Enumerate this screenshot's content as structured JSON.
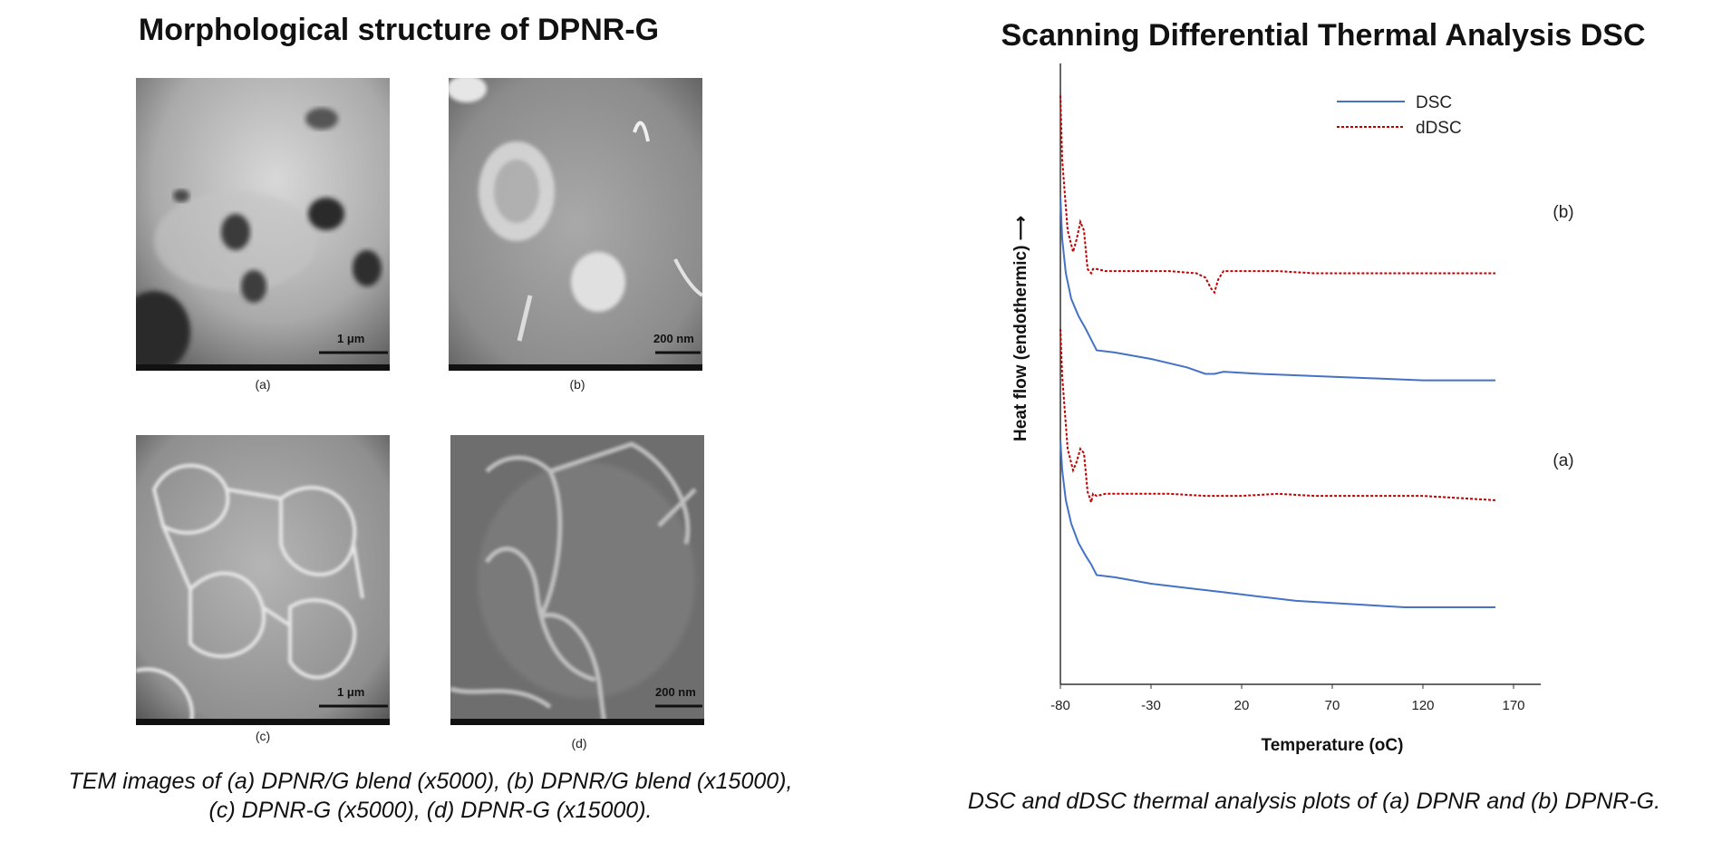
{
  "left": {
    "title": "Morphological structure of DPNR-G",
    "panels": [
      {
        "label": "(a)",
        "scale": "1 μm"
      },
      {
        "label": "(b)",
        "scale": "200 nm"
      },
      {
        "label": "(c)",
        "scale": "1 μm"
      },
      {
        "label": "(d)",
        "scale": "200 nm"
      }
    ],
    "caption_line1": "TEM images of (a) DPNR/G blend (x5000), (b) DPNR/G blend (x15000),",
    "caption_line2": "(c) DPNR-G (x5000), (d) DPNR-G (x15000)."
  },
  "right": {
    "title": "Scanning Differential Thermal Analysis DSC",
    "caption": "DSC and dDSC thermal analysis plots of (a) DPNR and (b) DPNR-G."
  },
  "chart_data": {
    "type": "line",
    "title": "Scanning Differential Thermal Analysis DSC",
    "xlabel": "Temperature (oC)",
    "ylabel": "Heat flow (endothermic) ⟶",
    "xlim": [
      -80,
      180
    ],
    "xticks": [
      "-80",
      "-30",
      "20",
      "70",
      "120",
      "170"
    ],
    "legend": {
      "position": "top-right",
      "entries": [
        "DSC",
        "dDSC"
      ]
    },
    "grid": false,
    "colors": {
      "DSC": "#4472C4",
      "dDSC": "#C00000"
    },
    "groups": [
      {
        "label": "(b)",
        "series": [
          {
            "name": "dDSC",
            "style": "dotted",
            "x": [
              -80,
              -79,
              -76,
              -73,
              -71,
              -69,
              -67,
              -65,
              -63,
              -62,
              -60,
              -55,
              -40,
              -20,
              -5,
              0,
              3,
              5,
              7,
              10,
              20,
              40,
              60,
              80,
              100,
              120,
              140,
              160
            ],
            "y": [
              1.85,
              1.55,
              1.22,
              1.12,
              1.18,
              1.26,
              1.22,
              1.04,
              1.02,
              1.04,
              1.04,
              1.03,
              1.03,
              1.03,
              1.02,
              1.0,
              0.95,
              0.93,
              0.99,
              1.03,
              1.03,
              1.03,
              1.02,
              1.02,
              1.02,
              1.02,
              1.02,
              1.02
            ]
          },
          {
            "name": "DSC",
            "style": "solid",
            "x": [
              -80,
              -79,
              -77,
              -74,
              -70,
              -66,
              -63,
              -60,
              -50,
              -30,
              -10,
              0,
              5,
              10,
              30,
              60,
              90,
              120,
              140,
              160
            ],
            "y": [
              1.38,
              1.18,
              1.02,
              0.9,
              0.82,
              0.76,
              0.71,
              0.66,
              0.65,
              0.62,
              0.58,
              0.55,
              0.55,
              0.56,
              0.55,
              0.54,
              0.53,
              0.52,
              0.52,
              0.52
            ]
          }
        ]
      },
      {
        "label": "(a)",
        "series": [
          {
            "name": "dDSC",
            "style": "dotted",
            "x": [
              -80,
              -79,
              -76,
              -73,
              -71,
              -69,
              -67,
              -65,
              -63,
              -62,
              -60,
              -55,
              -40,
              -20,
              0,
              20,
              40,
              60,
              80,
              100,
              120,
              140,
              160
            ],
            "y": [
              0.76,
              0.54,
              0.2,
              0.1,
              0.14,
              0.2,
              0.18,
              0.0,
              -0.05,
              -0.01,
              -0.02,
              -0.01,
              -0.01,
              -0.01,
              -0.02,
              -0.02,
              -0.01,
              -0.02,
              -0.02,
              -0.02,
              -0.02,
              -0.03,
              -0.04
            ]
          },
          {
            "name": "DSC",
            "style": "solid",
            "x": [
              -80,
              -79,
              -77,
              -74,
              -70,
              -66,
              -63,
              -60,
              -50,
              -30,
              -10,
              10,
              30,
              50,
              70,
              90,
              110,
              130,
              150,
              160
            ],
            "y": [
              0.24,
              0.1,
              -0.04,
              -0.15,
              -0.24,
              -0.3,
              -0.34,
              -0.39,
              -0.4,
              -0.43,
              -0.45,
              -0.47,
              -0.49,
              -0.51,
              -0.52,
              -0.53,
              -0.54,
              -0.54,
              -0.54,
              -0.54
            ]
          }
        ]
      }
    ],
    "ylim": [
      -0.9,
      2.0
    ]
  }
}
